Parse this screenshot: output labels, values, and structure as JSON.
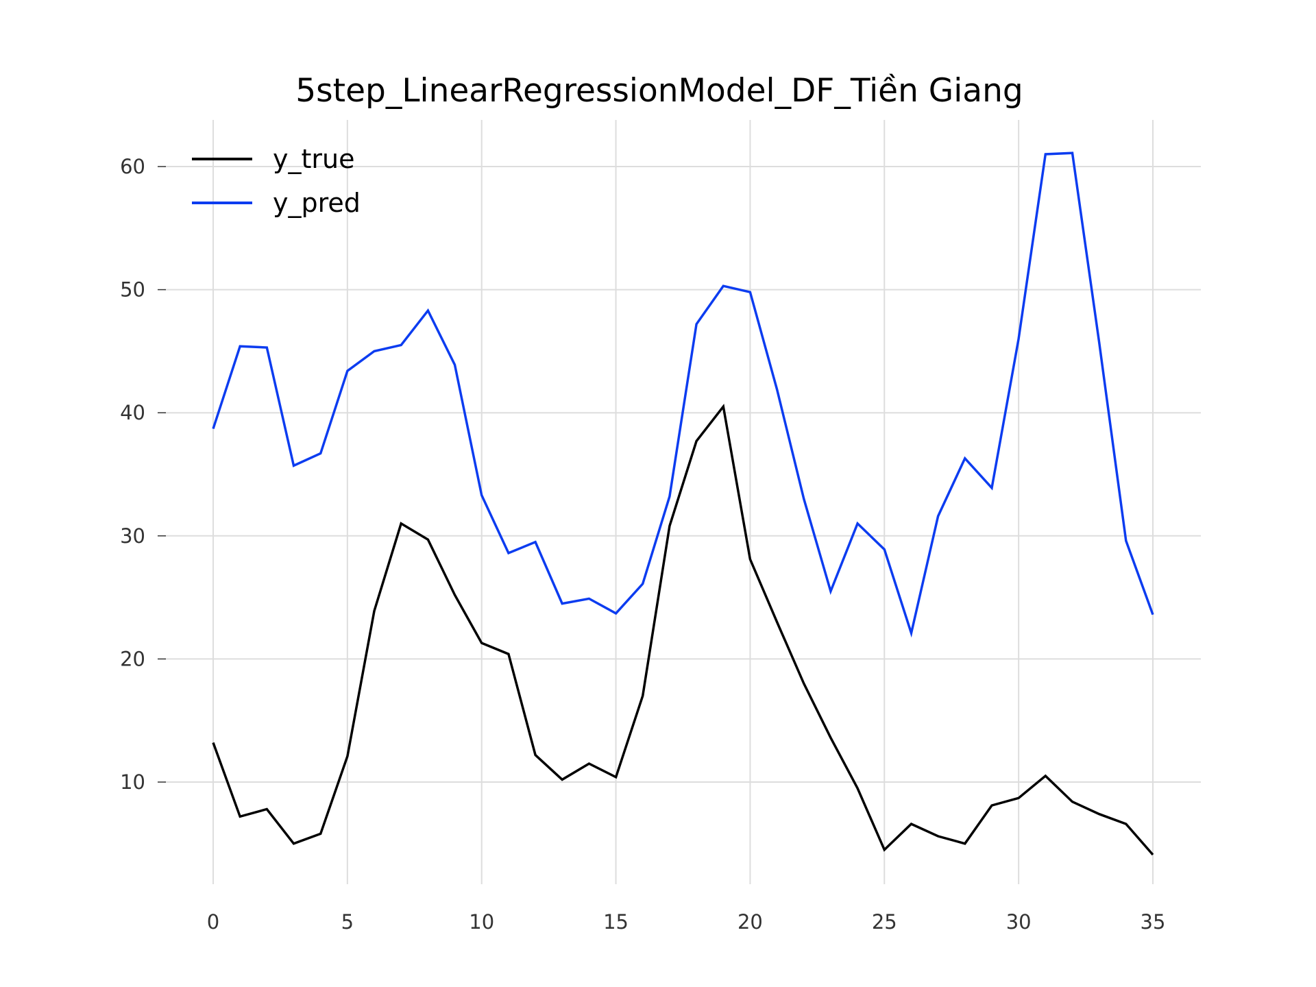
{
  "chart_data": {
    "type": "line",
    "title": "5step_LinearRegressionModel_DF_Tiền Giang",
    "xlabel": "",
    "ylabel": "",
    "xlim": [
      0,
      35
    ],
    "ylim": [
      1.5,
      64
    ],
    "x_ticks": [
      0,
      5,
      10,
      15,
      20,
      25,
      30,
      35
    ],
    "y_ticks": [
      10,
      20,
      30,
      40,
      50,
      60
    ],
    "grid": true,
    "legend_position": "top-left",
    "x": [
      0,
      1,
      2,
      3,
      4,
      5,
      6,
      7,
      8,
      9,
      10,
      11,
      12,
      13,
      14,
      15,
      16,
      17,
      18,
      19,
      20,
      21,
      22,
      23,
      24,
      25,
      26,
      27,
      28,
      29,
      30,
      31,
      32,
      33,
      34,
      35
    ],
    "series": [
      {
        "name": "y_true",
        "color": "#000000",
        "values": [
          13.2,
          7.2,
          7.8,
          5.0,
          5.8,
          12.1,
          23.9,
          31.0,
          29.7,
          25.2,
          21.3,
          20.4,
          12.2,
          10.2,
          11.5,
          10.4,
          17.0,
          30.8,
          37.7,
          40.5,
          28.1,
          23.0,
          18.0,
          13.6,
          9.5,
          4.5,
          6.6,
          5.6,
          5.0,
          8.1,
          8.7,
          10.5,
          8.4,
          7.4,
          6.6,
          4.1
        ]
      },
      {
        "name": "y_pred",
        "color": "#0c3cf0",
        "values": [
          38.7,
          45.4,
          45.3,
          35.7,
          36.7,
          43.4,
          45.0,
          45.5,
          48.3,
          43.9,
          33.3,
          28.6,
          29.5,
          24.5,
          24.9,
          23.7,
          26.1,
          33.2,
          47.2,
          50.3,
          49.8,
          41.9,
          33.0,
          25.5,
          31.0,
          28.9,
          22.1,
          31.6,
          36.3,
          33.9,
          46.0,
          61.0,
          61.1,
          45.7,
          29.6,
          23.6
        ]
      }
    ]
  }
}
